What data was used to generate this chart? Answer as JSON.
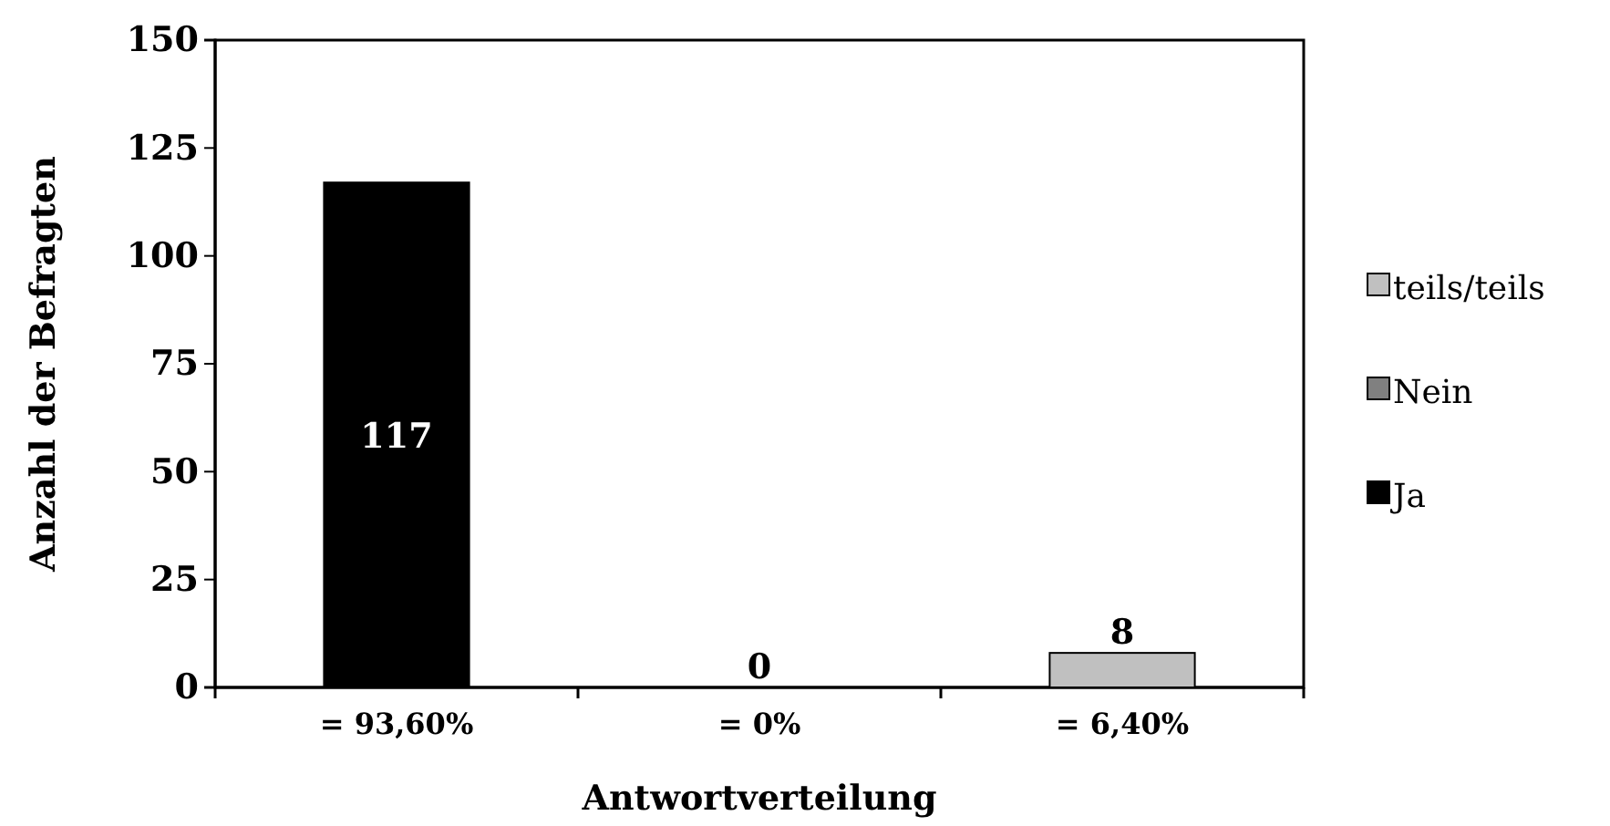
{
  "chart_data": {
    "type": "bar",
    "xlabel": "Antwortverteilung",
    "ylabel": "Anzahl der Befragten",
    "categories": [
      "= 93,60%",
      "= 0%",
      "= 6,40%"
    ],
    "series": [
      {
        "name": "Ja",
        "color": "#000000",
        "values": [
          117,
          null,
          null
        ]
      },
      {
        "name": "Nein",
        "color": "#808080",
        "values": [
          null,
          0,
          null
        ]
      },
      {
        "name": "teils/teils",
        "color": "#c0c0c0",
        "values": [
          null,
          null,
          8
        ]
      }
    ],
    "stacked": true,
    "ylim": [
      0,
      150
    ],
    "yticks": [
      0,
      25,
      50,
      75,
      100,
      125,
      150
    ],
    "data_labels": true,
    "legend": "right",
    "grid": false
  }
}
